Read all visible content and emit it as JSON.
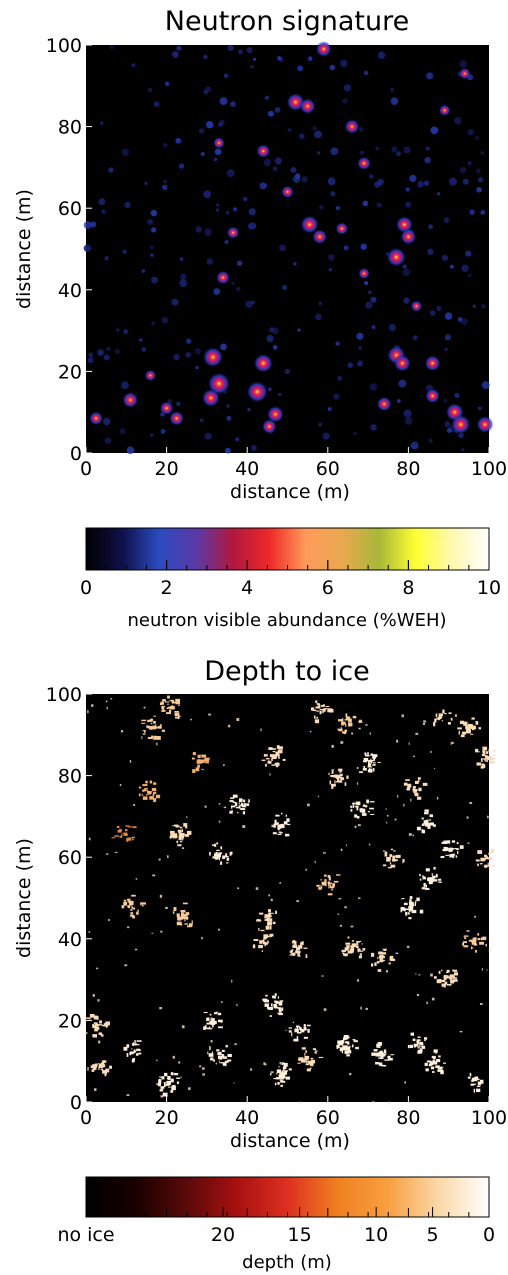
{
  "chart_data": [
    {
      "type": "heatmap",
      "title": "Neutron signature",
      "xlabel": "distance (m)",
      "ylabel": "distance (m)",
      "xlim": [
        0,
        100
      ],
      "ylim": [
        0,
        100
      ],
      "xticks": [
        "0",
        "20",
        "40",
        "60",
        "80",
        "100"
      ],
      "yticks": [
        "0",
        "20",
        "40",
        "60",
        "80",
        "100"
      ],
      "colorbar": {
        "label": "neutron visible abundance (%WEH)",
        "range": [
          0,
          10
        ],
        "ticks": [
          "0",
          "2",
          "4",
          "6",
          "8",
          "10"
        ],
        "colors": [
          "#000000",
          "#10104a",
          "#2a4cc0",
          "#5a3aa8",
          "#b01840",
          "#ee2828",
          "#ff9a5a",
          "#e8a850",
          "#a8b838",
          "#ffff33",
          "#fff8b0",
          "#ffffff"
        ]
      },
      "hotspots": [
        {
          "x": 31.5,
          "y": 23.5,
          "v": 6.5
        },
        {
          "x": 33,
          "y": 17,
          "v": 7.5
        },
        {
          "x": 31,
          "y": 13.5,
          "v": 5.5
        },
        {
          "x": 42.5,
          "y": 15,
          "v": 7
        },
        {
          "x": 44,
          "y": 22,
          "v": 6
        },
        {
          "x": 47,
          "y": 9.5,
          "v": 5
        },
        {
          "x": 45.5,
          "y": 6.5,
          "v": 4
        },
        {
          "x": 52,
          "y": 86,
          "v": 5.5
        },
        {
          "x": 55,
          "y": 85,
          "v": 4.5
        },
        {
          "x": 59,
          "y": 99,
          "v": 4.5
        },
        {
          "x": 55.5,
          "y": 56,
          "v": 5.5
        },
        {
          "x": 58,
          "y": 53,
          "v": 4
        },
        {
          "x": 66,
          "y": 80,
          "v": 4
        },
        {
          "x": 69,
          "y": 71,
          "v": 3.5
        },
        {
          "x": 77,
          "y": 48,
          "v": 6
        },
        {
          "x": 79,
          "y": 56,
          "v": 5
        },
        {
          "x": 80,
          "y": 53,
          "v": 4.5
        },
        {
          "x": 77,
          "y": 24,
          "v": 5.5
        },
        {
          "x": 78.5,
          "y": 22,
          "v": 5
        },
        {
          "x": 86,
          "y": 22,
          "v": 4.5
        },
        {
          "x": 86,
          "y": 14,
          "v": 4
        },
        {
          "x": 91.5,
          "y": 10,
          "v": 5.5
        },
        {
          "x": 93,
          "y": 7,
          "v": 6
        },
        {
          "x": 99,
          "y": 7,
          "v": 5
        },
        {
          "x": 74,
          "y": 12,
          "v": 4
        },
        {
          "x": 11,
          "y": 13,
          "v": 4.5
        },
        {
          "x": 20,
          "y": 11,
          "v": 3.5
        },
        {
          "x": 22.5,
          "y": 8.5,
          "v": 4
        },
        {
          "x": 34,
          "y": 43,
          "v": 3.5
        },
        {
          "x": 36.5,
          "y": 54,
          "v": 3
        },
        {
          "x": 44,
          "y": 74,
          "v": 3.5
        },
        {
          "x": 50,
          "y": 64,
          "v": 3
        },
        {
          "x": 2.5,
          "y": 8.5,
          "v": 3.5
        },
        {
          "x": 33,
          "y": 76,
          "v": 2.5
        },
        {
          "x": 63.5,
          "y": 55,
          "v": 3
        },
        {
          "x": 69,
          "y": 44,
          "v": 2.5
        },
        {
          "x": 89,
          "y": 84,
          "v": 2.5
        },
        {
          "x": 94,
          "y": 93,
          "v": 2.5
        },
        {
          "x": 82,
          "y": 36,
          "v": 2.5
        },
        {
          "x": 16,
          "y": 19,
          "v": 2.5
        }
      ]
    },
    {
      "type": "heatmap",
      "title": "Depth to ice",
      "xlabel": "distance (m)",
      "ylabel": "distance (m)",
      "xlim": [
        0,
        100
      ],
      "ylim": [
        0,
        100
      ],
      "xticks": [
        "0",
        "20",
        "40",
        "60",
        "80",
        "100"
      ],
      "yticks": [
        "0",
        "20",
        "40",
        "60",
        "80",
        "100"
      ],
      "colorbar": {
        "label": "depth (m)",
        "ticks": [
          "no ice",
          "20",
          "15",
          "10",
          "5",
          "0"
        ],
        "colors": [
          "#000000",
          "#1a0000",
          "#5a0a0a",
          "#a81010",
          "#dd3020",
          "#f08020",
          "#f8a040",
          "#fbd8a8",
          "#ffffff"
        ]
      },
      "ice_patches": [
        {
          "x": 9,
          "y": 66,
          "depth": 8
        },
        {
          "x": 16,
          "y": 92,
          "depth": 3
        },
        {
          "x": 21,
          "y": 97,
          "depth": 3
        },
        {
          "x": 28,
          "y": 84,
          "depth": 4
        },
        {
          "x": 23,
          "y": 66,
          "depth": 2
        },
        {
          "x": 33,
          "y": 61,
          "depth": 1
        },
        {
          "x": 31,
          "y": 20,
          "depth": 1
        },
        {
          "x": 33,
          "y": 12,
          "depth": 1
        },
        {
          "x": 46,
          "y": 24,
          "depth": 1
        },
        {
          "x": 48,
          "y": 7,
          "depth": 1
        },
        {
          "x": 45,
          "y": 45,
          "depth": 2
        },
        {
          "x": 44,
          "y": 40,
          "depth": 2
        },
        {
          "x": 52,
          "y": 37,
          "depth": 2
        },
        {
          "x": 48,
          "y": 68,
          "depth": 1
        },
        {
          "x": 46,
          "y": 85,
          "depth": 2
        },
        {
          "x": 62,
          "y": 80,
          "depth": 2
        },
        {
          "x": 58,
          "y": 96,
          "depth": 2
        },
        {
          "x": 65,
          "y": 93,
          "depth": 3
        },
        {
          "x": 70,
          "y": 83,
          "depth": 1
        },
        {
          "x": 68,
          "y": 72,
          "depth": 1
        },
        {
          "x": 66,
          "y": 38,
          "depth": 2
        },
        {
          "x": 73,
          "y": 35,
          "depth": 2
        },
        {
          "x": 64,
          "y": 14,
          "depth": 1
        },
        {
          "x": 73,
          "y": 12,
          "depth": 1
        },
        {
          "x": 82,
          "y": 15,
          "depth": 1
        },
        {
          "x": 86,
          "y": 10,
          "depth": 1
        },
        {
          "x": 96,
          "y": 6,
          "depth": 1
        },
        {
          "x": 89,
          "y": 31,
          "depth": 2
        },
        {
          "x": 80,
          "y": 48,
          "depth": 1
        },
        {
          "x": 85,
          "y": 55,
          "depth": 1
        },
        {
          "x": 90,
          "y": 62,
          "depth": 1
        },
        {
          "x": 84,
          "y": 69,
          "depth": 1
        },
        {
          "x": 81,
          "y": 77,
          "depth": 2
        },
        {
          "x": 88,
          "y": 95,
          "depth": 2
        },
        {
          "x": 95,
          "y": 92,
          "depth": 2
        },
        {
          "x": 96,
          "y": 40,
          "depth": 3
        },
        {
          "x": 3,
          "y": 9,
          "depth": 2
        },
        {
          "x": 12,
          "y": 13,
          "depth": 1
        },
        {
          "x": 20,
          "y": 5,
          "depth": 1
        },
        {
          "x": 11,
          "y": 48,
          "depth": 3
        },
        {
          "x": 24,
          "y": 46,
          "depth": 3
        },
        {
          "x": 2,
          "y": 19,
          "depth": 2
        },
        {
          "x": 55,
          "y": 11,
          "depth": 2
        },
        {
          "x": 60,
          "y": 54,
          "depth": 3
        },
        {
          "x": 76,
          "y": 60,
          "depth": 2
        },
        {
          "x": 53,
          "y": 18,
          "depth": 1
        },
        {
          "x": 99,
          "y": 85,
          "depth": 2
        },
        {
          "x": 99,
          "y": 60,
          "depth": 2
        },
        {
          "x": 15,
          "y": 76,
          "depth": 4
        },
        {
          "x": 38,
          "y": 73,
          "depth": 1
        }
      ]
    }
  ]
}
